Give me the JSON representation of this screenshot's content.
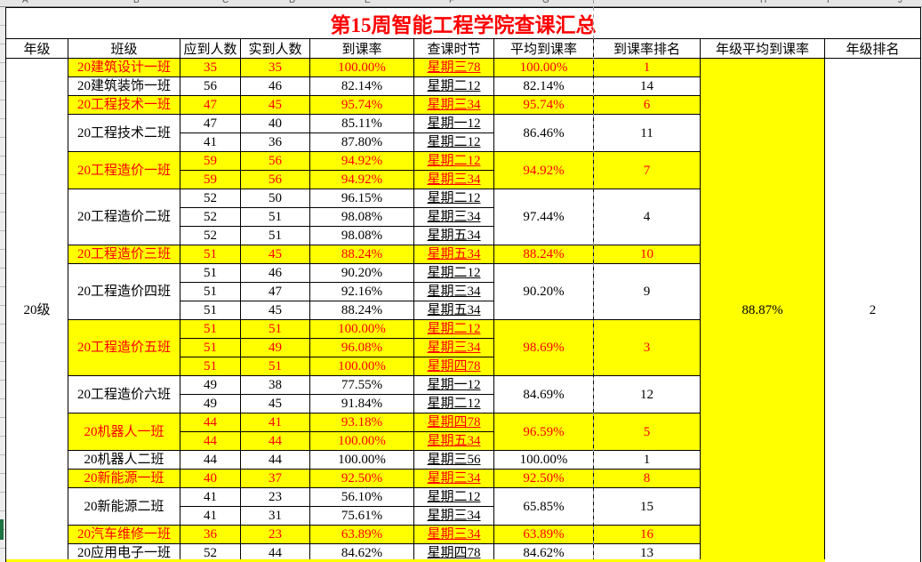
{
  "app": {
    "title": "第15周智能工程学院查课汇总"
  },
  "colors": {
    "highlight": "#FFFF00",
    "highlight_text": "#FF0000",
    "title_text": "#FF0000",
    "grid_border": "#000000",
    "page_break_line": "#9A9A9A",
    "margin_green_mark": "#1F7244"
  },
  "spreadsheet": {
    "column_letters": [
      "A",
      "B",
      "C",
      "D",
      "E",
      "F",
      "G",
      "H",
      "I",
      "J"
    ]
  },
  "table": {
    "headers": [
      "年级",
      "班级",
      "应到人数",
      "实到人数",
      "到课率",
      "查课时节",
      "平均到课率",
      "到课率排名",
      "年级平均到课率",
      "年级排名"
    ],
    "grade": {
      "label": "20级",
      "average_rate": "88.87%",
      "rank": "2"
    },
    "classes": [
      {
        "name": "20建筑设计一班",
        "highlight": true,
        "avg_rate": "100.00%",
        "rank": "1",
        "rows": [
          {
            "expected": "35",
            "actual": "35",
            "rate": "100.00%",
            "session": "星期三78"
          }
        ]
      },
      {
        "name": "20建筑装饰一班",
        "highlight": false,
        "avg_rate": "82.14%",
        "rank": "14",
        "rows": [
          {
            "expected": "56",
            "actual": "46",
            "rate": "82.14%",
            "session": "星期二12"
          }
        ]
      },
      {
        "name": "20工程技术一班",
        "highlight": true,
        "avg_rate": "95.74%",
        "rank": "6",
        "rows": [
          {
            "expected": "47",
            "actual": "45",
            "rate": "95.74%",
            "session": "星期三34"
          }
        ]
      },
      {
        "name": "20工程技术二班",
        "highlight": false,
        "avg_rate": "86.46%",
        "rank": "11",
        "rows": [
          {
            "expected": "47",
            "actual": "40",
            "rate": "85.11%",
            "session": "星期一12"
          },
          {
            "expected": "41",
            "actual": "36",
            "rate": "87.80%",
            "session": "星期二12"
          }
        ]
      },
      {
        "name": "20工程造价一班",
        "highlight": true,
        "avg_rate": "94.92%",
        "rank": "7",
        "rows": [
          {
            "expected": "59",
            "actual": "56",
            "rate": "94.92%",
            "session": "星期二12"
          },
          {
            "expected": "59",
            "actual": "56",
            "rate": "94.92%",
            "session": "星期三34"
          }
        ]
      },
      {
        "name": "20工程造价二班",
        "highlight": false,
        "avg_rate": "97.44%",
        "rank": "4",
        "rows": [
          {
            "expected": "52",
            "actual": "50",
            "rate": "96.15%",
            "session": "星期二12"
          },
          {
            "expected": "52",
            "actual": "51",
            "rate": "98.08%",
            "session": "星期三34"
          },
          {
            "expected": "52",
            "actual": "51",
            "rate": "98.08%",
            "session": "星期五34"
          }
        ]
      },
      {
        "name": "20工程造价三班",
        "highlight": true,
        "avg_rate": "88.24%",
        "rank": "10",
        "rows": [
          {
            "expected": "51",
            "actual": "45",
            "rate": "88.24%",
            "session": "星期五34"
          }
        ]
      },
      {
        "name": "20工程造价四班",
        "highlight": false,
        "avg_rate": "90.20%",
        "rank": "9",
        "rows": [
          {
            "expected": "51",
            "actual": "46",
            "rate": "90.20%",
            "session": "星期二12"
          },
          {
            "expected": "51",
            "actual": "47",
            "rate": "92.16%",
            "session": "星期三34"
          },
          {
            "expected": "51",
            "actual": "45",
            "rate": "88.24%",
            "session": "星期五34"
          }
        ]
      },
      {
        "name": "20工程造价五班",
        "highlight": true,
        "avg_rate": "98.69%",
        "rank": "3",
        "rows": [
          {
            "expected": "51",
            "actual": "51",
            "rate": "100.00%",
            "session": "星期二12"
          },
          {
            "expected": "51",
            "actual": "49",
            "rate": "96.08%",
            "session": "星期三34"
          },
          {
            "expected": "51",
            "actual": "51",
            "rate": "100.00%",
            "session": "星期四78"
          }
        ]
      },
      {
        "name": "20工程造价六班",
        "highlight": false,
        "avg_rate": "84.69%",
        "rank": "12",
        "rows": [
          {
            "expected": "49",
            "actual": "38",
            "rate": "77.55%",
            "session": "星期一12"
          },
          {
            "expected": "49",
            "actual": "45",
            "rate": "91.84%",
            "session": "星期二12"
          }
        ]
      },
      {
        "name": "20机器人一班",
        "highlight": true,
        "avg_rate": "96.59%",
        "rank": "5",
        "rows": [
          {
            "expected": "44",
            "actual": "41",
            "rate": "93.18%",
            "session": "星期四78"
          },
          {
            "expected": "44",
            "actual": "44",
            "rate": "100.00%",
            "session": "星期五34"
          }
        ]
      },
      {
        "name": "20机器人二班",
        "highlight": false,
        "avg_rate": "100.00%",
        "rank": "1",
        "rows": [
          {
            "expected": "44",
            "actual": "44",
            "rate": "100.00%",
            "session": "星期三56"
          }
        ]
      },
      {
        "name": "20新能源一班",
        "highlight": true,
        "avg_rate": "92.50%",
        "rank": "8",
        "rows": [
          {
            "expected": "40",
            "actual": "37",
            "rate": "92.50%",
            "session": "星期三34"
          }
        ]
      },
      {
        "name": "20新能源二班",
        "highlight": false,
        "avg_rate": "65.85%",
        "rank": "15",
        "rows": [
          {
            "expected": "41",
            "actual": "23",
            "rate": "56.10%",
            "session": "星期二12"
          },
          {
            "expected": "41",
            "actual": "31",
            "rate": "75.61%",
            "session": "星期三34"
          }
        ]
      },
      {
        "name": "20汽车维修一班",
        "highlight": true,
        "avg_rate": "63.89%",
        "rank": "16",
        "rows": [
          {
            "expected": "36",
            "actual": "23",
            "rate": "63.89%",
            "session": "星期三34"
          }
        ]
      },
      {
        "name": "20应用电子一班",
        "highlight": false,
        "avg_rate": "84.62%",
        "rank": "13",
        "rows": [
          {
            "expected": "52",
            "actual": "44",
            "rate": "84.62%",
            "session": "星期四78"
          }
        ]
      }
    ]
  }
}
